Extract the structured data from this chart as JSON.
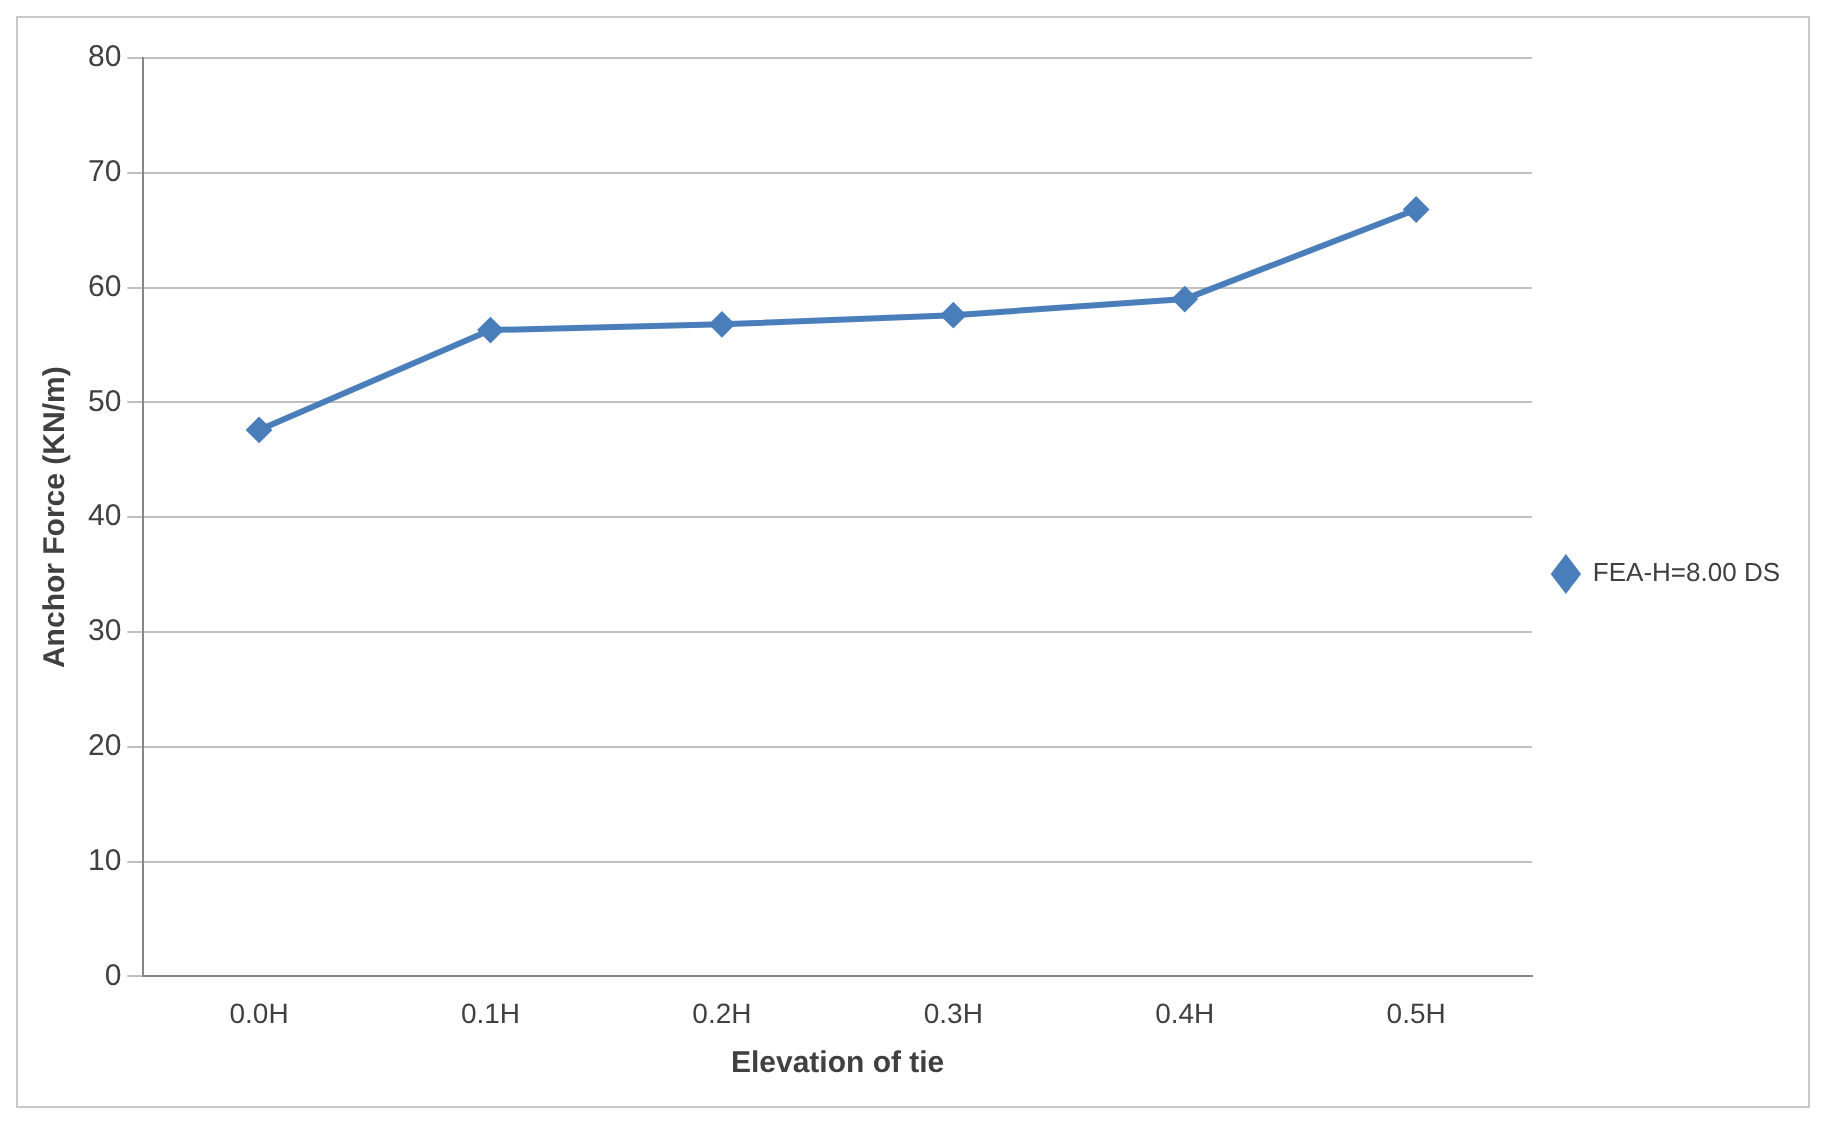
{
  "chart_data": {
    "type": "line",
    "xlabel": "Elevation of tie",
    "ylabel": "Anchor Force (KN/m)",
    "categories": [
      "0.0H",
      "0.1H",
      "0.2H",
      "0.3H",
      "0.4H",
      "0.5H"
    ],
    "series": [
      {
        "name": "FEA-H=8.00 DS",
        "color": "#4a7ebb",
        "values": [
          47.6,
          56.3,
          56.8,
          57.6,
          59.0,
          66.8
        ]
      }
    ],
    "ylim": [
      0,
      80
    ],
    "yticks": [
      0,
      10,
      20,
      30,
      40,
      50,
      60,
      70,
      80
    ],
    "grid": "y",
    "legend": "right",
    "marker": "diamond",
    "line_style": "solid"
  }
}
